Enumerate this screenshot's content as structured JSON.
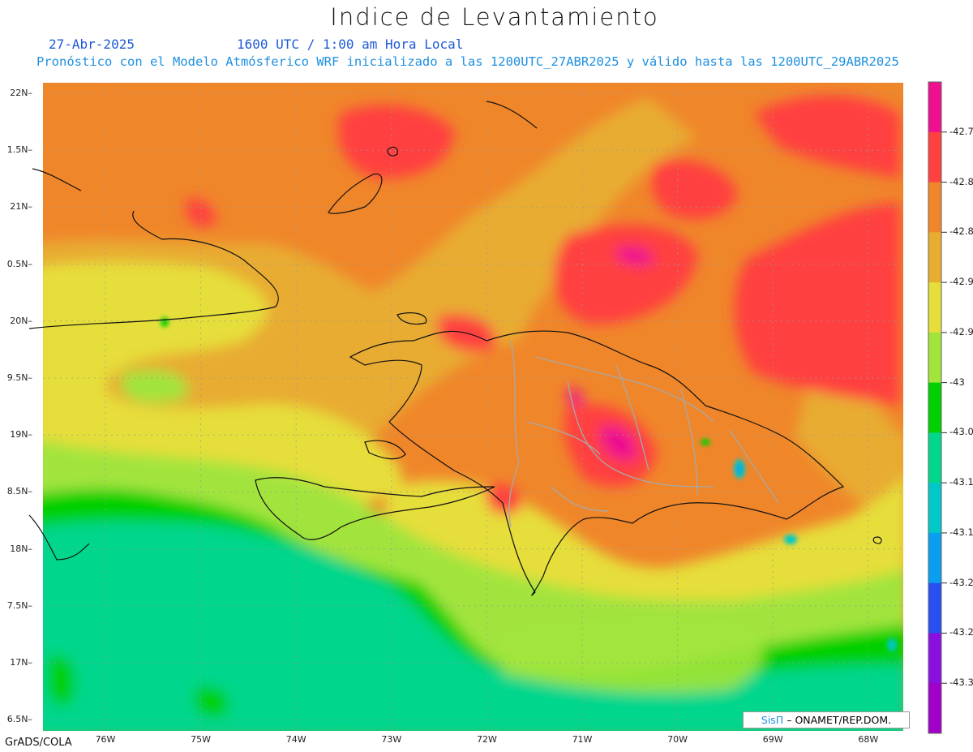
{
  "title": "Indice de Levantamiento",
  "date": "27-Abr-2025",
  "time": "1600 UTC / 1:00 am Hora Local",
  "forecast": "Pronóstico con el Modelo Atmósferico WRF inicializado a las 1200UTC_27ABR2025 y válido hasta las  1200UTC_29ABR2025",
  "lat_labels": [
    "22N",
    "1.5N",
    "21N",
    "0.5N",
    "20N",
    "9.5N",
    "19N",
    "8.5N",
    "18N",
    "7.5N",
    "17N",
    "6.5N"
  ],
  "lon_labels": [
    "76W",
    "75W",
    "74W",
    "73W",
    "72W",
    "71W",
    "70W",
    "69W",
    "68W"
  ],
  "colorbar": {
    "labels": [
      "-42.7",
      "-42.8",
      "-42.8",
      "-42.9",
      "-42.9",
      "-43",
      "-43.0",
      "-43.1",
      "-43.1",
      "-43.2",
      "-43.2",
      "-43.3"
    ],
    "colors": [
      "#ee1090",
      "#ff4040",
      "#f0862a",
      "#e8ac30",
      "#e6de3a",
      "#a2e43c",
      "#00d000",
      "#00d68c",
      "#00c8c8",
      "#0a9ef0",
      "#2850f0",
      "#8a10e0",
      "#a000c8"
    ]
  },
  "credit": {
    "sis": "SisΠ",
    "text": "– ONAMET/REP.DOM."
  },
  "footer": "GrADS/COLA"
}
